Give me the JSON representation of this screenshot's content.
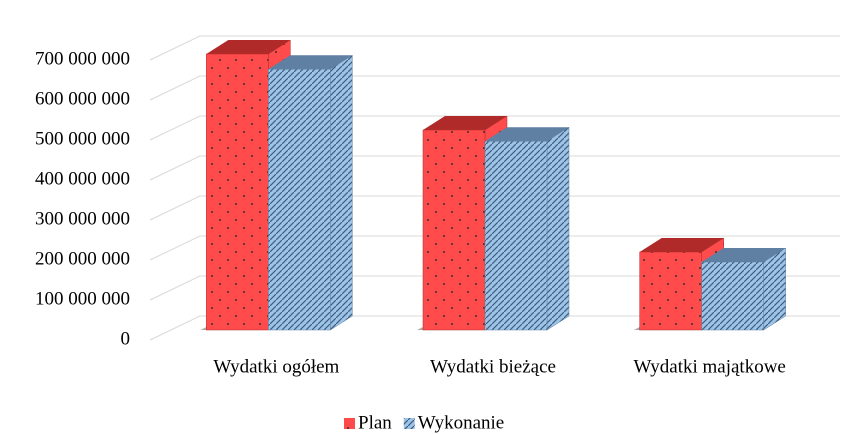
{
  "chart_data": {
    "type": "bar3d",
    "categories": [
      "Wydatki ogółem",
      "Wydatki bieżące",
      "Wydatki majątkowe"
    ],
    "series": [
      {
        "name": "Plan",
        "color": "#ff4b4b",
        "values": [
          690000000,
          500000000,
          195000000
        ]
      },
      {
        "name": "Wykonanie",
        "color": "#9dc3e6",
        "values": [
          652000000,
          472000000,
          170000000
        ]
      }
    ],
    "ylim": [
      0,
      700000000
    ],
    "yticks": [
      0,
      {
        "value": 100000000,
        "label": "100 000 000"
      },
      {
        "value": 200000000,
        "label": "200 000 000"
      },
      {
        "value": 300000000,
        "label": "300 000 000"
      },
      {
        "value": 400000000,
        "label": "400 000 000"
      },
      {
        "value": 500000000,
        "label": "500 000 000"
      },
      {
        "value": 600000000,
        "label": "600 000 000"
      },
      {
        "value": 700000000,
        "label": "700 000 000"
      }
    ],
    "grid": true,
    "legend": "bottom"
  }
}
